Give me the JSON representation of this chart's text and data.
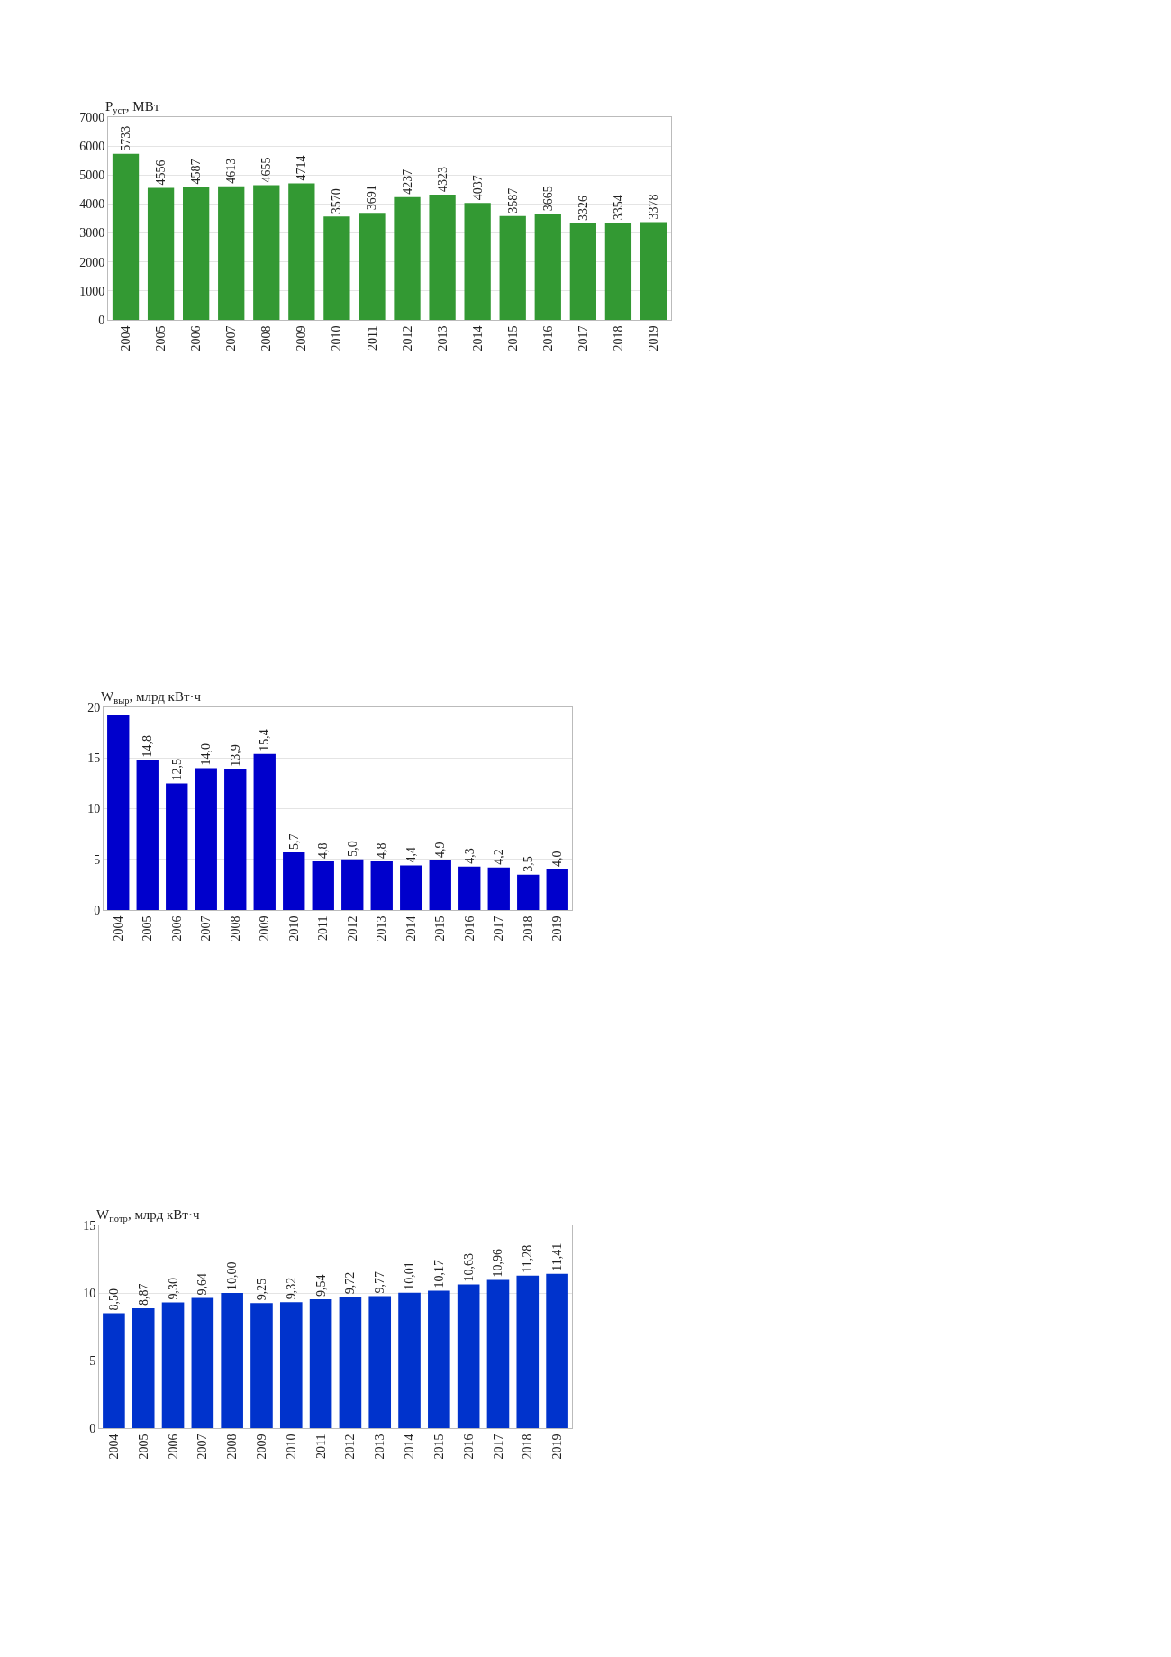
{
  "chart_data": [
    {
      "type": "bar",
      "ylabel": "P$_{уст}$, МВт",
      "categories": [
        "2004",
        "2005",
        "2006",
        "2007",
        "2008",
        "2009",
        "2010",
        "2011",
        "2012",
        "2013",
        "2014",
        "2015",
        "2016",
        "2017",
        "2018",
        "2019"
      ],
      "values": [
        5733,
        4556,
        4587,
        4613,
        4655,
        4714,
        3570,
        3691,
        4237,
        4323,
        4037,
        3587,
        3665,
        3326,
        3354,
        3378
      ],
      "color": "#339933",
      "data_labels": true,
      "ylim": [
        0,
        7000
      ],
      "yticks": [
        0,
        1000,
        2000,
        3000,
        4000,
        5000,
        6000,
        7000
      ],
      "grid": "y"
    },
    {
      "type": "bar",
      "ylabel": "W$_{выр}$, млрд кВт·ч",
      "categories": [
        "2004",
        "2005",
        "2006",
        "2007",
        "2008",
        "2009",
        "2010",
        "2011",
        "2012",
        "2013",
        "2014",
        "2015",
        "2016",
        "2017",
        "2018",
        "2019"
      ],
      "values": [
        19.3,
        14.8,
        12.5,
        14.0,
        13.9,
        15.4,
        5.7,
        4.8,
        5.0,
        4.8,
        4.4,
        4.9,
        4.3,
        4.2,
        3.5,
        4.0
      ],
      "value_labels": [
        null,
        "14,8",
        "12,5",
        "14,0",
        "13,9",
        "15,4",
        "5,7",
        "4,8",
        "5,0",
        "4,8",
        "4,4",
        "4,9",
        "4,3",
        "4,2",
        "3,5",
        "4,0"
      ],
      "color": "#0000cc",
      "ylim": [
        0,
        20
      ],
      "yticks": [
        0,
        5,
        10,
        15,
        20
      ],
      "grid": "y"
    },
    {
      "type": "bar",
      "ylabel": "W$_{потр}$, млрд кВт·ч",
      "categories": [
        "2004",
        "2005",
        "2006",
        "2007",
        "2008",
        "2009",
        "2010",
        "2011",
        "2012",
        "2013",
        "2014",
        "2015",
        "2016",
        "2017",
        "2018",
        "2019"
      ],
      "values": [
        8.5,
        8.87,
        9.3,
        9.64,
        10.0,
        9.25,
        9.32,
        9.54,
        9.72,
        9.77,
        10.01,
        10.17,
        10.63,
        10.96,
        11.28,
        11.41
      ],
      "value_labels": [
        "8,50",
        "8,87",
        "9,30",
        "9,64",
        "10,00",
        "9,25",
        "9,32",
        "9,54",
        "9,72",
        "9,77",
        "10,01",
        "10,17",
        "10,63",
        "10,96",
        "11,28",
        "11,41"
      ],
      "color": "#0033cc",
      "ylim": [
        0,
        15
      ],
      "yticks": [
        0,
        5,
        10,
        15
      ],
      "grid": "y"
    }
  ]
}
